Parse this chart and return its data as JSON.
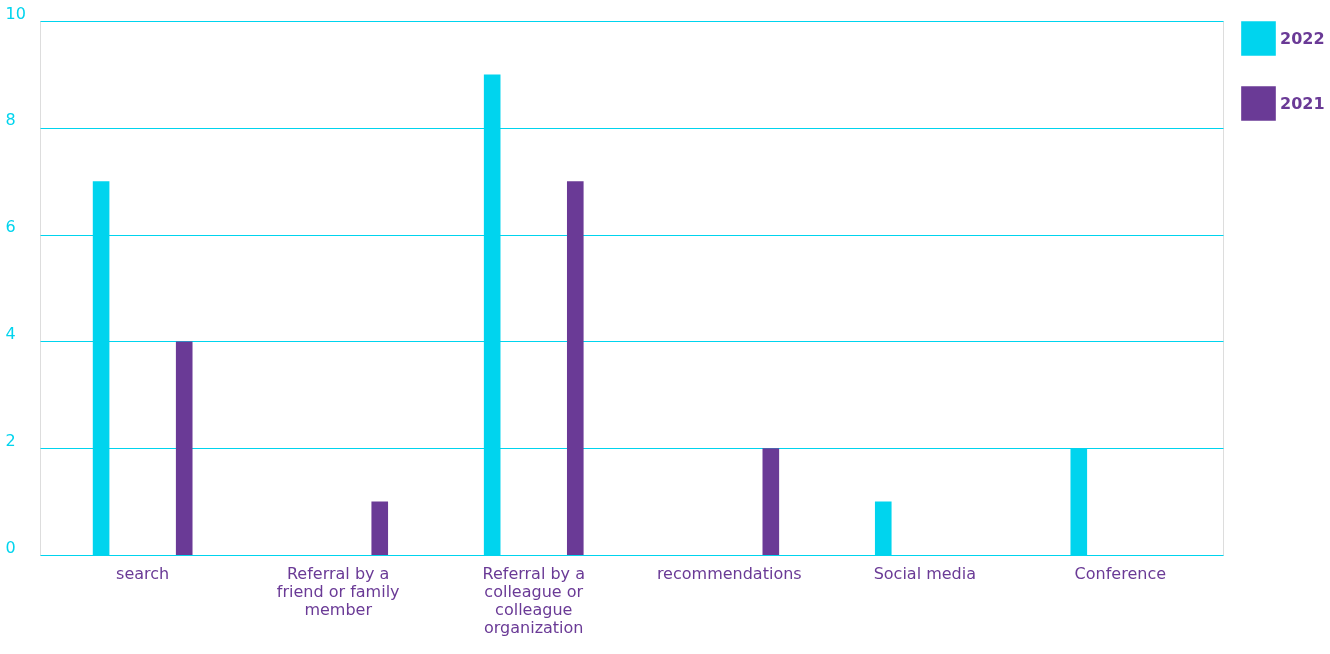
{
  "chart_data": {
    "type": "bar",
    "categories": [
      "search",
      "Referral by a friend or family member",
      "Referral by a colleague or colleague organization",
      "recommendations",
      "Social media",
      "Conference"
    ],
    "series": [
      {
        "name": "2022",
        "color": "#00d4ee",
        "values": [
          7,
          0,
          9,
          0,
          1,
          2
        ]
      },
      {
        "name": "2021",
        "color": "#6a3a96",
        "values": [
          4,
          1,
          7,
          2,
          0,
          0
        ]
      }
    ],
    "ylim": [
      0,
      10
    ],
    "yticks": [
      0,
      2,
      4,
      6,
      8,
      10
    ],
    "grid": "y",
    "legend": "right"
  }
}
